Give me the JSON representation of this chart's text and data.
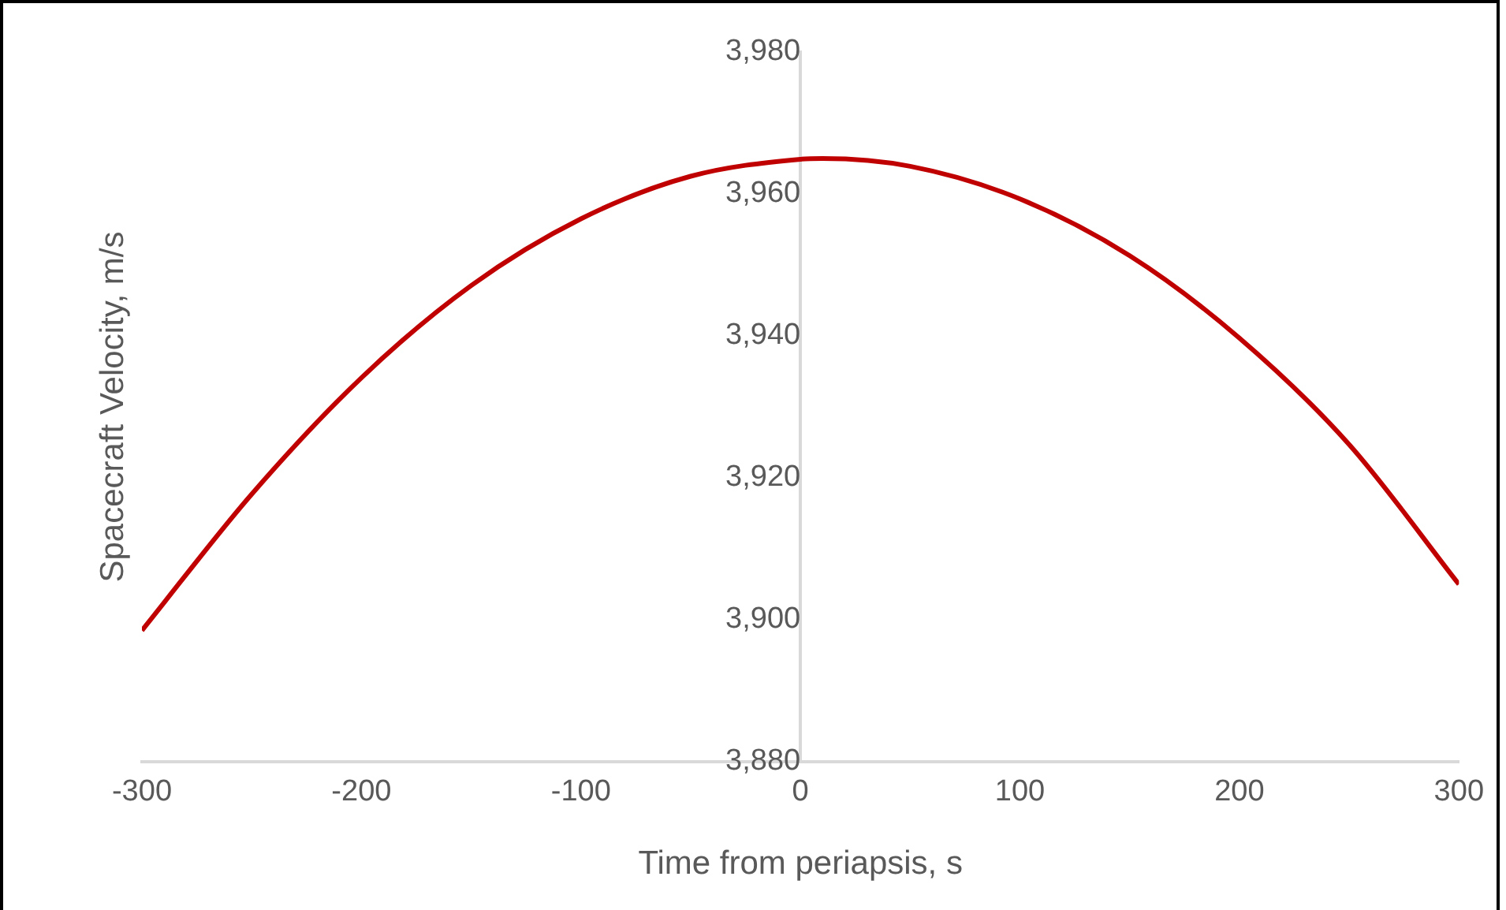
{
  "chart_data": {
    "type": "line",
    "xlabel": "Time from periapsis, s",
    "ylabel": "Spacecraft Velocity, m/s",
    "x": [
      -300,
      -250,
      -200,
      -150,
      -100,
      -50,
      0,
      10,
      50,
      100,
      150,
      200,
      250,
      300
    ],
    "series": [
      {
        "color": "#c00000",
        "values": [
          3898.5,
          3917.7,
          3934.1,
          3947.1,
          3956.5,
          3962.5,
          3964.9,
          3965,
          3963.9,
          3959.3,
          3951.3,
          3939.7,
          3924.7,
          3905
        ]
      }
    ],
    "xlim": [
      -300,
      300
    ],
    "xticks": [
      -300,
      -200,
      -100,
      0,
      100,
      200,
      300
    ],
    "ylim": [
      3880,
      3980
    ],
    "yticks": [
      {
        "value": 3880,
        "label": "3,880"
      },
      {
        "value": 3900,
        "label": "3,900"
      },
      {
        "value": 3920,
        "label": "3,920"
      },
      {
        "value": 3940,
        "label": "3,940"
      },
      {
        "value": 3960,
        "label": "3,960"
      },
      {
        "value": 3980,
        "label": "3,980"
      }
    ],
    "grid": false,
    "legend": false,
    "marker": "none",
    "line_style": "solid"
  }
}
